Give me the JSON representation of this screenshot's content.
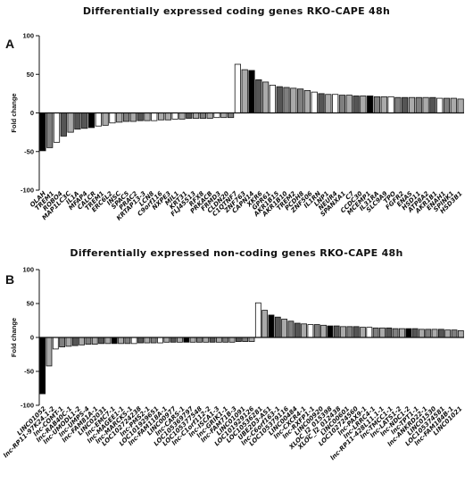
{
  "chart_data": [
    {
      "id": "A",
      "type": "bar",
      "panel_label": "A",
      "title": "Differentially expressed coding genes RKO-CAPE 48h",
      "ylabel": "Fold change",
      "ylim": [
        -100,
        100
      ],
      "yticks": [
        -100,
        -50,
        0,
        50,
        100
      ],
      "categories": [
        "OLAH",
        "TREM1",
        "ROBO4",
        "MAP1LC3C",
        "IL1A",
        "MFAP4",
        "CALCR",
        "ZSCAN5A",
        "TRANK1",
        "ERCC6L2",
        "INSC",
        "SPAC5",
        "PRAC2",
        "KRTAP13-3",
        "LCN8",
        "C9orf116",
        "NXPE3",
        "MIL1",
        "KRT31",
        "FLJ45513",
        "RFX8",
        "PRKACB",
        "FRMD3",
        "CLDN20",
        "C1QTNF7",
        "CAPN14",
        "CCDC30",
        "ZNF763",
        "XKR6",
        "GPR61",
        "NFATC2IP",
        "AKR1B15",
        "ARKR1B10",
        "TREM2",
        "RNF144A",
        "SUSD5",
        "PCDH8",
        "ZNF506",
        "ZNF468",
        "LNP1",
        "IL4",
        "CIORF23",
        "PPP1R3",
        "SPANXA1",
        "NEK7",
        "CCL26",
        "C7",
        "TPPP3",
        "GALNT5",
        "RAB19",
        "SEZ6",
        "CDC20",
        "MCEMP1",
        "SLC45A3",
        "IL31RA",
        "GAS2L2",
        "SLC9A9",
        "TPO",
        "FGFR2",
        "SPINK1",
        "HSD3B1"
      ],
      "labels_shown": [
        "OLAH",
        "TREM1",
        "ROBO4",
        "MAP1LC3C",
        "IL1A",
        "MFAP4",
        "CALCR",
        "TREM1",
        "ERC6L2",
        "INSC",
        "SPAC5",
        "PRAC2",
        "KRTAP13-3",
        "LCN8",
        "C9orf116",
        "NXPE3",
        "MIL1",
        "KRT31",
        "FLJ45513",
        "RFX8",
        "PRKACB",
        "FRMD3",
        "CLDN20",
        "C1QTNF7",
        "ZNF763",
        "CAPN14",
        "XKR6",
        "GPR61",
        "AKR1B15",
        "AKR1B10",
        "TREM2",
        "PCDH8",
        "ZNF506",
        "IL1RN",
        "LNP1",
        "NEUR4",
        "SPANXA1",
        "C7",
        "CCDC30",
        "MCEMP1",
        "IL31RA",
        "SLC9A9",
        "TPO",
        "FGFR2",
        "ENAS",
        "HSD11",
        "ATP8A2",
        "AKR1B1",
        "ENAH1",
        "SPINK1",
        "HSD3B1"
      ],
      "values": [
        -49,
        -45,
        -38,
        -30,
        -25,
        -21,
        -20,
        -19,
        -17,
        -16,
        -13,
        -12,
        -11,
        -11,
        -10,
        -10,
        -10,
        -9,
        -9,
        -8,
        -8,
        -7,
        -7,
        -7,
        -7,
        -6,
        -6,
        -6,
        63,
        56,
        55,
        43,
        40,
        36,
        34,
        33,
        32,
        31,
        29,
        27,
        25,
        24,
        24,
        23,
        23,
        22,
        22,
        22,
        21,
        21,
        21,
        20,
        20,
        20,
        20,
        20,
        20,
        19,
        19,
        19,
        18
      ],
      "bar_fills": [
        "#000000",
        "#7f7f7f",
        "#ffffff",
        "#555555",
        "#aaaaaa",
        "#555555",
        "#555555",
        "#000000",
        "#ffffff",
        "#aaaaaa",
        "#ffffff",
        "#aaaaaa",
        "#7f7f7f",
        "#aaaaaa",
        "#555555",
        "#aaaaaa",
        "#ffffff",
        "#aaaaaa",
        "#aaaaaa",
        "#ffffff",
        "#aaaaaa",
        "#555555",
        "#aaaaaa",
        "#7f7f7f",
        "#aaaaaa",
        "#ffffff",
        "#aaaaaa",
        "#7f7f7f",
        "#ffffff",
        "#aaaaaa",
        "#000000",
        "#555555",
        "#aaaaaa",
        "#ffffff",
        "#555555",
        "#7f7f7f",
        "#aaaaaa",
        "#7f7f7f",
        "#aaaaaa",
        "#ffffff",
        "#555555",
        "#aaaaaa",
        "#ffffff",
        "#7f7f7f",
        "#aaaaaa",
        "#555555",
        "#aaaaaa",
        "#000000",
        "#7f7f7f",
        "#aaaaaa",
        "#ffffff",
        "#7f7f7f",
        "#555555",
        "#aaaaaa",
        "#7f7f7f",
        "#aaaaaa",
        "#555555",
        "#ffffff",
        "#7f7f7f",
        "#aaaaaa",
        "#aaaaaa"
      ],
      "grid": false
    },
    {
      "id": "B",
      "type": "bar",
      "panel_label": "B",
      "title": "Differentially expressed non-coding genes RKO-CAPE 48h",
      "ylabel": "Fold change",
      "ylim": [
        -100,
        100
      ],
      "yticks": [
        -100,
        -50,
        0,
        50,
        100
      ],
      "labels_shown": [
        "LINC01052",
        "lnc-RP11-97K24.1-2",
        "lnc-COMT-1",
        "lnc-RAB40C-1",
        "lnc-UMODL1-2",
        "lnc-UMPS-4",
        "lnc-FAM81A-1",
        "LINC02031",
        "lnc-EMC7-1",
        "lnc-MAGEE1-1",
        "lnc-MARCKS-1",
        "LOC102724238",
        "lnc-PMS2-1",
        "LOC101929651",
        "lnc-FAM118A-1",
        "LINC00977",
        "lnc-CARS-1",
        "LOC105369797",
        "LOC105377548",
        "lnc-C1orf112-2",
        "lnc-ISCA1-3",
        "lnc-GRIK1-1",
        "lnc-FAM71B-3",
        "LINC01091",
        "LOC101929126",
        "LOC10536281",
        "UBE2D3-AS1",
        "lnc-C6orf163-1",
        "LOC105379116",
        "LINC00484",
        "lnc-CXCR4-1",
        "lnc-RXFP1-1",
        "LINC00920",
        "XLOC_I2_015398",
        "XLOC_I2_012438",
        "LINC00601",
        "LOC102724560",
        "lnc-PAX9-1",
        "lnc-LRRC4-1",
        "lnc-RP11-428L11.1-1",
        "lnc-TMCC1-1",
        "lnc-LATS1-2",
        "lnc-NDC1-2",
        "lnc-TPT1-1",
        "lnc-ANKRD22-1",
        "LINC01530",
        "LOC105374581",
        "lnc-FAM184B-1",
        "LINC01021"
      ],
      "values": [
        -83,
        -42,
        -17,
        -14,
        -13,
        -12,
        -11,
        -10,
        -10,
        -9,
        -9,
        -9,
        -9,
        -9,
        -9,
        -8,
        -8,
        -8,
        -8,
        -7,
        -7,
        -7,
        -7,
        -7,
        -7,
        -7,
        -7,
        -7,
        -7,
        -7,
        -6,
        -6,
        -6,
        51,
        40,
        33,
        30,
        27,
        24,
        21,
        20,
        19,
        19,
        18,
        17,
        17,
        16,
        16,
        16,
        15,
        15,
        14,
        14,
        14,
        13,
        13,
        13,
        13,
        12,
        12,
        12,
        12,
        11,
        11,
        10
      ],
      "bar_fills": [
        "#000000",
        "#aaaaaa",
        "#ffffff",
        "#7f7f7f",
        "#aaaaaa",
        "#555555",
        "#aaaaaa",
        "#7f7f7f",
        "#aaaaaa",
        "#555555",
        "#aaaaaa",
        "#000000",
        "#aaaaaa",
        "#7f7f7f",
        "#ffffff",
        "#555555",
        "#aaaaaa",
        "#7f7f7f",
        "#ffffff",
        "#aaaaaa",
        "#555555",
        "#aaaaaa",
        "#000000",
        "#aaaaaa",
        "#7f7f7f",
        "#aaaaaa",
        "#555555",
        "#aaaaaa",
        "#7f7f7f",
        "#aaaaaa",
        "#555555",
        "#7f7f7f",
        "#aaaaaa",
        "#ffffff",
        "#aaaaaa",
        "#000000",
        "#555555",
        "#aaaaaa",
        "#7f7f7f",
        "#555555",
        "#aaaaaa",
        "#ffffff",
        "#7f7f7f",
        "#aaaaaa",
        "#000000",
        "#555555",
        "#aaaaaa",
        "#7f7f7f",
        "#555555",
        "#aaaaaa",
        "#ffffff",
        "#7f7f7f",
        "#aaaaaa",
        "#555555",
        "#7f7f7f",
        "#aaaaaa",
        "#000000",
        "#555555",
        "#aaaaaa",
        "#7f7f7f",
        "#aaaaaa",
        "#555555",
        "#aaaaaa",
        "#7f7f7f",
        "#aaaaaa"
      ],
      "grid": false
    }
  ]
}
